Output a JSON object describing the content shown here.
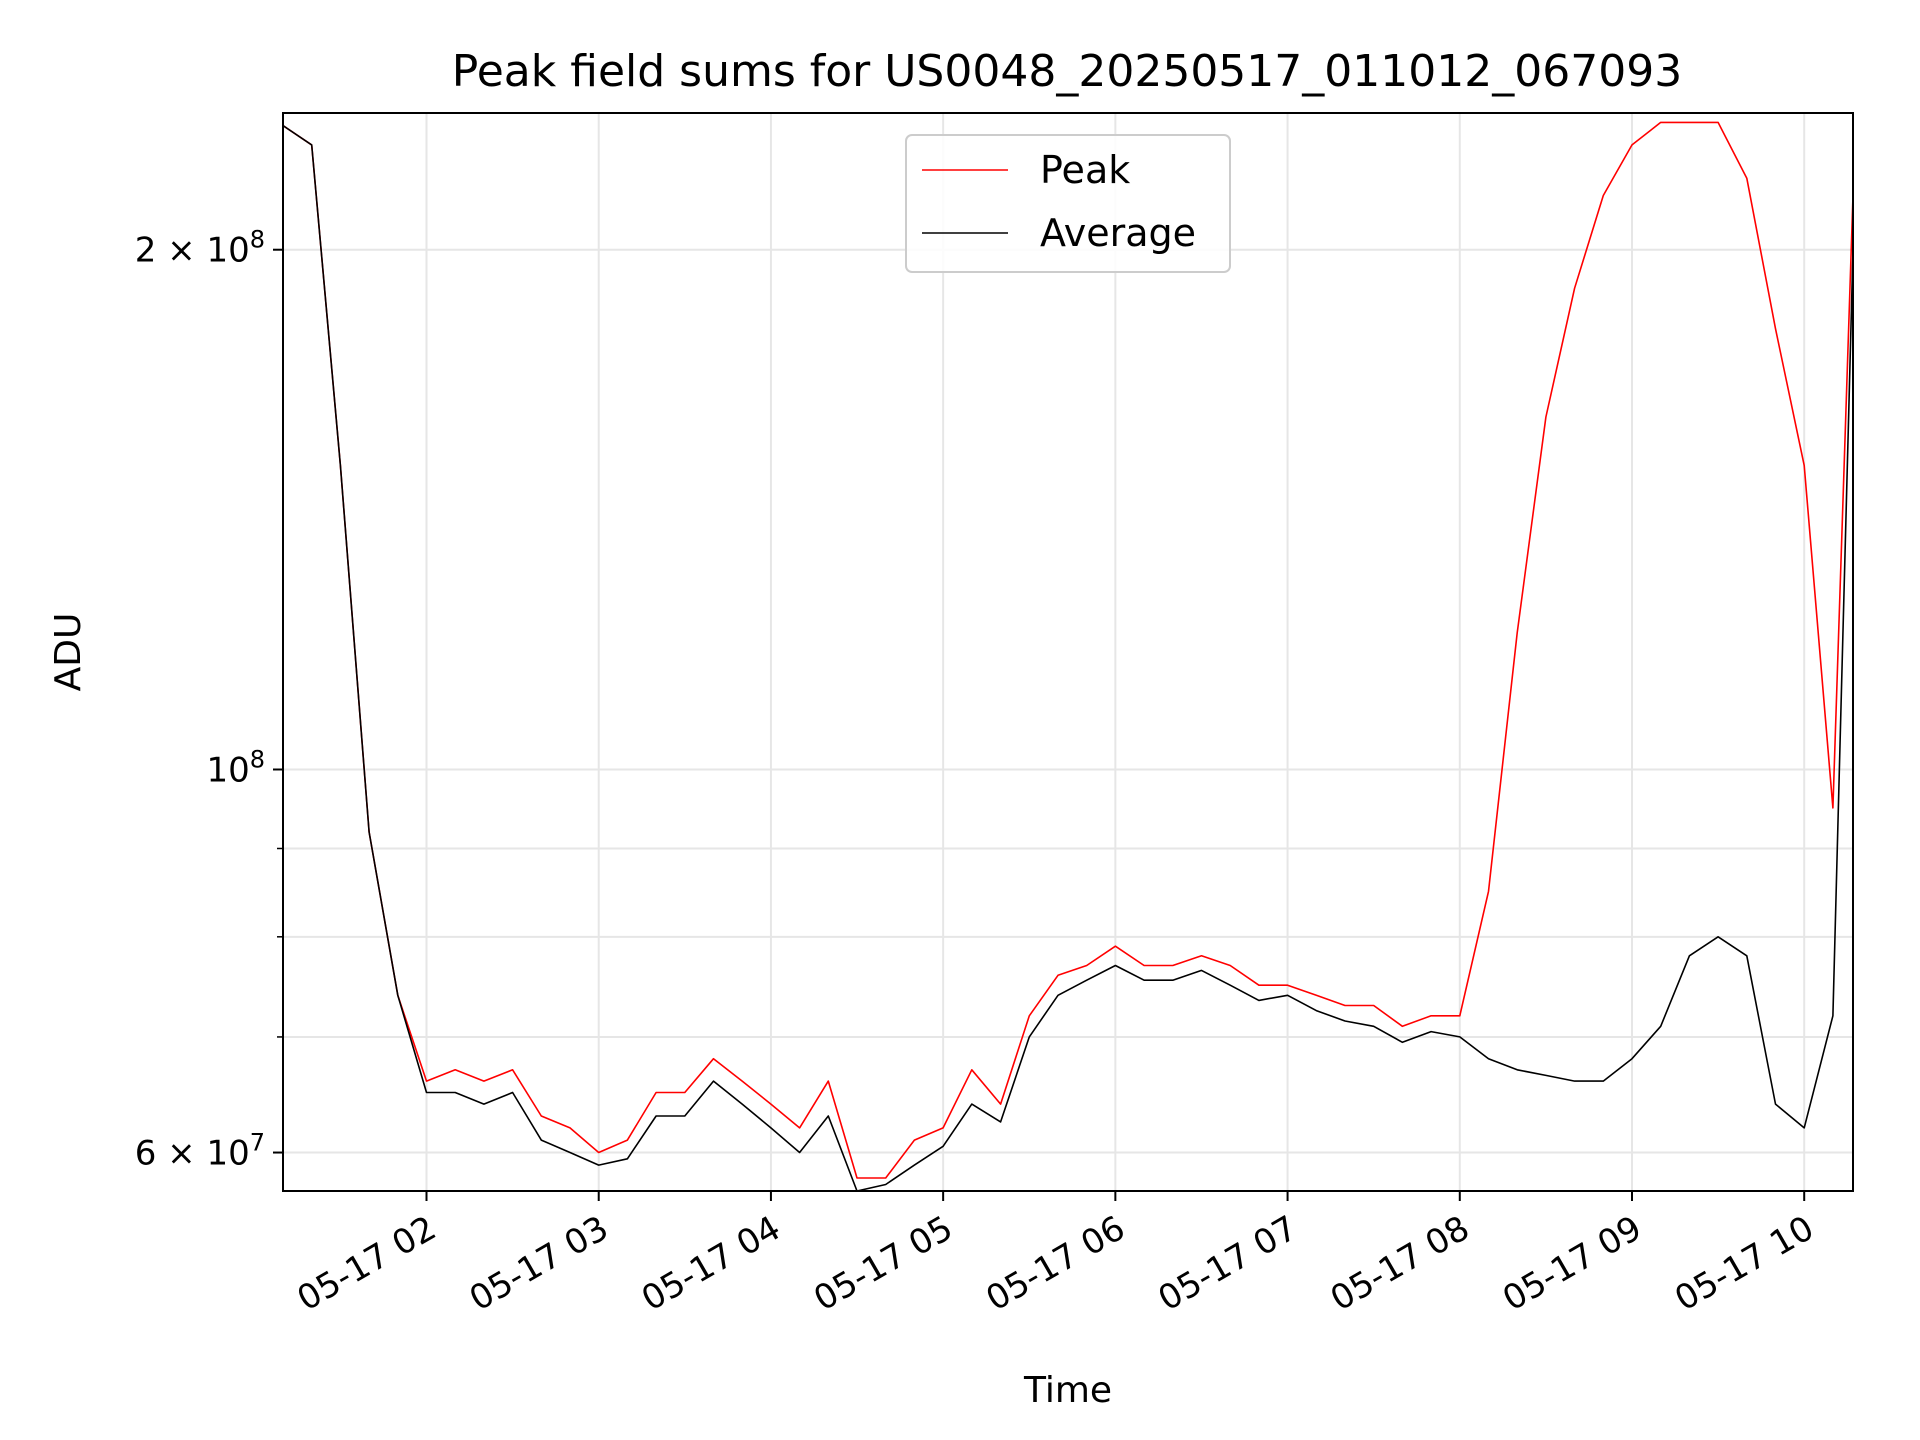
{
  "chart_data": {
    "type": "line",
    "title": "Peak field sums for US0048_20250517_011012_067093",
    "xlabel": "Time",
    "ylabel": "ADU",
    "y_scale": "log",
    "xlim": [
      "2025-05-17 01:10",
      "2025-05-17 10:17"
    ],
    "ylim": [
      57000000,
      240000000
    ],
    "x_ticks": [
      "05-17 02",
      "05-17 03",
      "05-17 04",
      "05-17 05",
      "05-17 06",
      "05-17 07",
      "05-17 08",
      "05-17 09",
      "05-17 10"
    ],
    "y_ticks": [
      {
        "value": 60000000,
        "label": "6 × 10^7",
        "mantissa": "6 × 10",
        "exp": "7"
      },
      {
        "value": 100000000,
        "label": "10^8",
        "mantissa": "10",
        "exp": "8"
      },
      {
        "value": 200000000,
        "label": "2 × 10^8",
        "mantissa": "2 × 10",
        "exp": "8"
      }
    ],
    "grid": true,
    "legend": {
      "placement": "top-center"
    },
    "series": [
      {
        "name": "Peak",
        "color": "#ff0000",
        "x": [
          "2025-05-17 01:10",
          "2025-05-17 01:20",
          "2025-05-17 01:30",
          "2025-05-17 01:40",
          "2025-05-17 01:50",
          "2025-05-17 02:00",
          "2025-05-17 02:10",
          "2025-05-17 02:20",
          "2025-05-17 02:30",
          "2025-05-17 02:40",
          "2025-05-17 02:50",
          "2025-05-17 03:00",
          "2025-05-17 03:10",
          "2025-05-17 03:20",
          "2025-05-17 03:30",
          "2025-05-17 03:40",
          "2025-05-17 03:50",
          "2025-05-17 04:00",
          "2025-05-17 04:10",
          "2025-05-17 04:20",
          "2025-05-17 04:30",
          "2025-05-17 04:40",
          "2025-05-17 04:50",
          "2025-05-17 05:00",
          "2025-05-17 05:10",
          "2025-05-17 05:20",
          "2025-05-17 05:30",
          "2025-05-17 05:40",
          "2025-05-17 05:50",
          "2025-05-17 06:00",
          "2025-05-17 06:10",
          "2025-05-17 06:20",
          "2025-05-17 06:30",
          "2025-05-17 06:40",
          "2025-05-17 06:50",
          "2025-05-17 07:00",
          "2025-05-17 07:10",
          "2025-05-17 07:20",
          "2025-05-17 07:30",
          "2025-05-17 07:40",
          "2025-05-17 07:50",
          "2025-05-17 08:00",
          "2025-05-17 08:10",
          "2025-05-17 08:20",
          "2025-05-17 08:30",
          "2025-05-17 08:40",
          "2025-05-17 08:50",
          "2025-05-17 09:00",
          "2025-05-17 09:10",
          "2025-05-17 09:20",
          "2025-05-17 09:30",
          "2025-05-17 09:40",
          "2025-05-17 09:50",
          "2025-05-17 10:00",
          "2025-05-17 10:10",
          "2025-05-17 10:17"
        ],
        "values": [
          236000000,
          230000000,
          150000000,
          92000000,
          74000000,
          66000000,
          67000000,
          66000000,
          67000000,
          63000000,
          62000000,
          60000000,
          61000000,
          65000000,
          65000000,
          68000000,
          66000000,
          64000000,
          62000000,
          66000000,
          58000000,
          58000000,
          61000000,
          62000000,
          67000000,
          64000000,
          72000000,
          76000000,
          77000000,
          79000000,
          77000000,
          77000000,
          78000000,
          77000000,
          75000000,
          75000000,
          74000000,
          73000000,
          73000000,
          71000000,
          72000000,
          72000000,
          85000000,
          120000000,
          160000000,
          190000000,
          215000000,
          230000000,
          237000000,
          237000000,
          237000000,
          220000000,
          180000000,
          150000000,
          95000000,
          215000000
        ]
      },
      {
        "name": "Average",
        "color": "#000000",
        "x": [
          "2025-05-17 01:10",
          "2025-05-17 01:20",
          "2025-05-17 01:30",
          "2025-05-17 01:40",
          "2025-05-17 01:50",
          "2025-05-17 02:00",
          "2025-05-17 02:10",
          "2025-05-17 02:20",
          "2025-05-17 02:30",
          "2025-05-17 02:40",
          "2025-05-17 02:50",
          "2025-05-17 03:00",
          "2025-05-17 03:10",
          "2025-05-17 03:20",
          "2025-05-17 03:30",
          "2025-05-17 03:40",
          "2025-05-17 03:50",
          "2025-05-17 04:00",
          "2025-05-17 04:10",
          "2025-05-17 04:20",
          "2025-05-17 04:30",
          "2025-05-17 04:40",
          "2025-05-17 04:50",
          "2025-05-17 05:00",
          "2025-05-17 05:10",
          "2025-05-17 05:20",
          "2025-05-17 05:30",
          "2025-05-17 05:40",
          "2025-05-17 05:50",
          "2025-05-17 06:00",
          "2025-05-17 06:10",
          "2025-05-17 06:20",
          "2025-05-17 06:30",
          "2025-05-17 06:40",
          "2025-05-17 06:50",
          "2025-05-17 07:00",
          "2025-05-17 07:10",
          "2025-05-17 07:20",
          "2025-05-17 07:30",
          "2025-05-17 07:40",
          "2025-05-17 07:50",
          "2025-05-17 08:00",
          "2025-05-17 08:10",
          "2025-05-17 08:20",
          "2025-05-17 08:30",
          "2025-05-17 08:40",
          "2025-05-17 08:50",
          "2025-05-17 09:00",
          "2025-05-17 09:10",
          "2025-05-17 09:20",
          "2025-05-17 09:30",
          "2025-05-17 09:40",
          "2025-05-17 09:50",
          "2025-05-17 10:00",
          "2025-05-17 10:10",
          "2025-05-17 10:17"
        ],
        "values": [
          236000000,
          230000000,
          150000000,
          92000000,
          74000000,
          65000000,
          65000000,
          64000000,
          65000000,
          61000000,
          60000000,
          59000000,
          59500000,
          63000000,
          63000000,
          66000000,
          64000000,
          62000000,
          60000000,
          63000000,
          57000000,
          57500000,
          59000000,
          60500000,
          64000000,
          62500000,
          70000000,
          74000000,
          75500000,
          77000000,
          75500000,
          75500000,
          76500000,
          75000000,
          73500000,
          74000000,
          72500000,
          71500000,
          71000000,
          69500000,
          70500000,
          70000000,
          68000000,
          67000000,
          66500000,
          66000000,
          66000000,
          68000000,
          71000000,
          78000000,
          80000000,
          78000000,
          64000000,
          62000000,
          72000000,
          200000000
        ]
      }
    ]
  }
}
